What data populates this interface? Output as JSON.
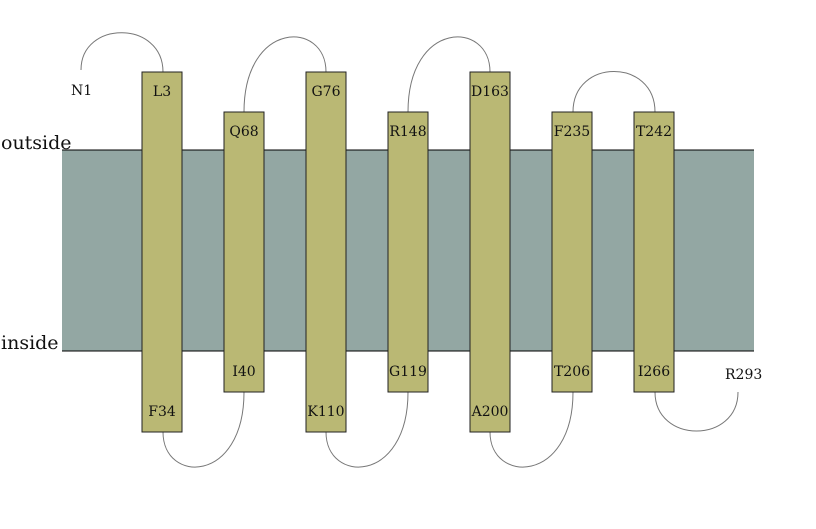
{
  "colors": {
    "membrane": "#93a7a3",
    "helix": "#bab874",
    "loop": "#777777"
  },
  "sides": {
    "outside": "outside",
    "inside": "inside"
  },
  "termini": {
    "n": "N1",
    "c": "R293"
  },
  "helices": [
    {
      "top": "L3",
      "bottom": "F34"
    },
    {
      "top": "Q68",
      "bottom": "I40"
    },
    {
      "top": "G76",
      "bottom": "K110"
    },
    {
      "top": "R148",
      "bottom": "G119"
    },
    {
      "top": "D163",
      "bottom": "A200"
    },
    {
      "top": "F235",
      "bottom": "T206"
    },
    {
      "top": "T242",
      "bottom": "I266"
    }
  ]
}
